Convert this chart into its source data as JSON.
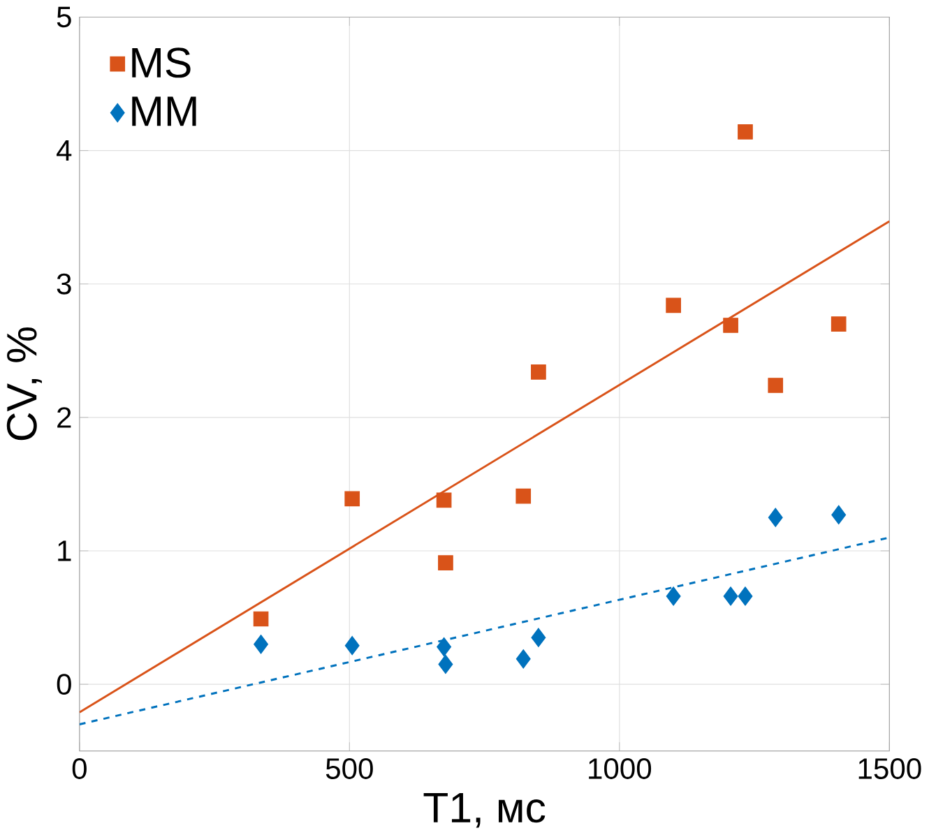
{
  "chart_data": {
    "type": "scatter",
    "xlabel": "T1, мс",
    "ylabel": "CV, %",
    "xlim": [
      0,
      1500
    ],
    "ylim": [
      -0.5,
      5
    ],
    "xticks": [
      0,
      500,
      1000,
      1500
    ],
    "yticks": [
      0,
      1,
      2,
      3,
      4,
      5
    ],
    "grid": true,
    "legend": "top left",
    "series": [
      {
        "name": "MS",
        "color": "#d95319",
        "marker": "square",
        "x": [
          336,
          505,
          675,
          678,
          822,
          850,
          1100,
          1206,
          1233,
          1289,
          1406
        ],
        "values": [
          0.49,
          1.39,
          1.38,
          0.91,
          1.41,
          2.34,
          2.84,
          2.69,
          4.14,
          2.24,
          2.7
        ]
      },
      {
        "name": "MM",
        "color": "#0072bd",
        "marker": "diamond",
        "x": [
          336,
          505,
          675,
          678,
          822,
          850,
          1100,
          1206,
          1233,
          1289,
          1406
        ],
        "values": [
          0.3,
          0.29,
          0.28,
          0.15,
          0.19,
          0.35,
          0.66,
          0.66,
          0.66,
          1.25,
          1.27
        ]
      },
      {
        "type": "line",
        "color": "#d95319",
        "line_style": "solid",
        "x": [
          0,
          1500
        ],
        "values": [
          -0.21,
          3.47
        ]
      },
      {
        "type": "line",
        "color": "#0072bd",
        "line_style": "dashed",
        "x": [
          0,
          1500
        ],
        "values": [
          -0.3,
          1.1
        ]
      }
    ]
  }
}
